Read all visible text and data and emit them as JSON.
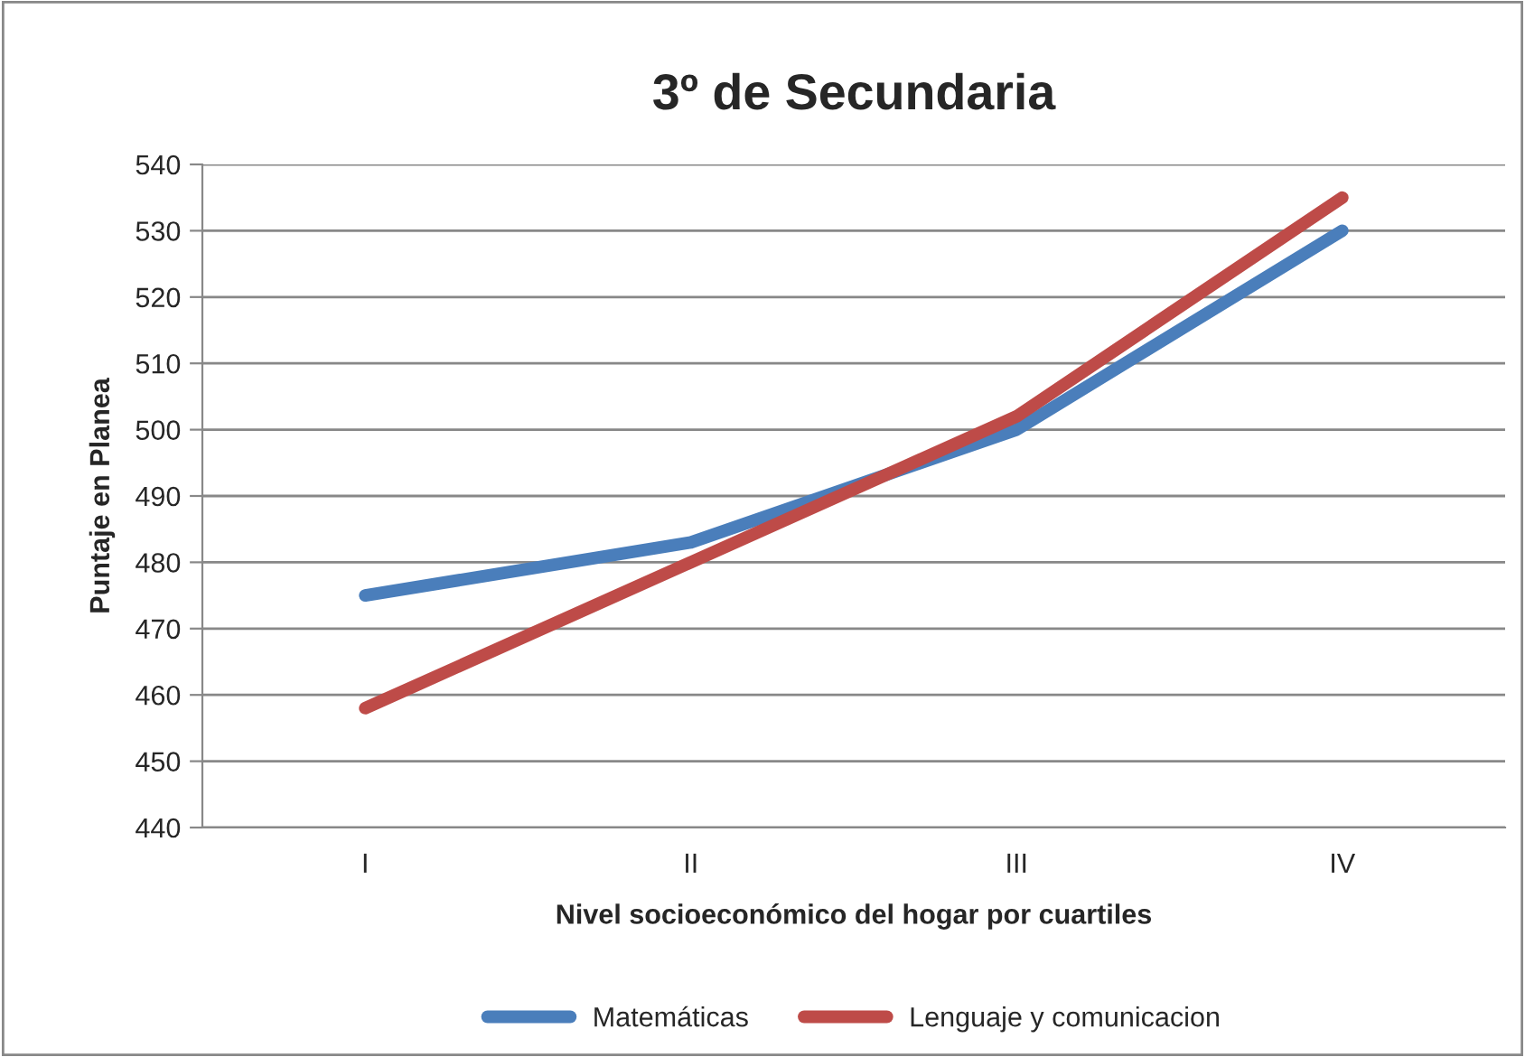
{
  "chart_data": {
    "type": "line",
    "title": "3º de Secundaria",
    "xlabel": "Nivel socioeconómico del hogar por cuartiles",
    "ylabel": "Puntaje en Planea",
    "categories": [
      "I",
      "II",
      "III",
      "IV"
    ],
    "series": [
      {
        "name": "Matemáticas",
        "color": "#4a7ebb",
        "values": [
          475,
          483,
          500,
          530
        ]
      },
      {
        "name": "Lenguaje y comunicacion",
        "color": "#be4b48",
        "values": [
          458,
          480,
          502,
          535
        ]
      }
    ],
    "ylim": [
      440,
      540
    ],
    "yticks": [
      440,
      450,
      460,
      470,
      480,
      490,
      500,
      510,
      520,
      530,
      540
    ],
    "grid": "y",
    "legend": "bottom",
    "marker": "none",
    "line_style": "solid"
  }
}
